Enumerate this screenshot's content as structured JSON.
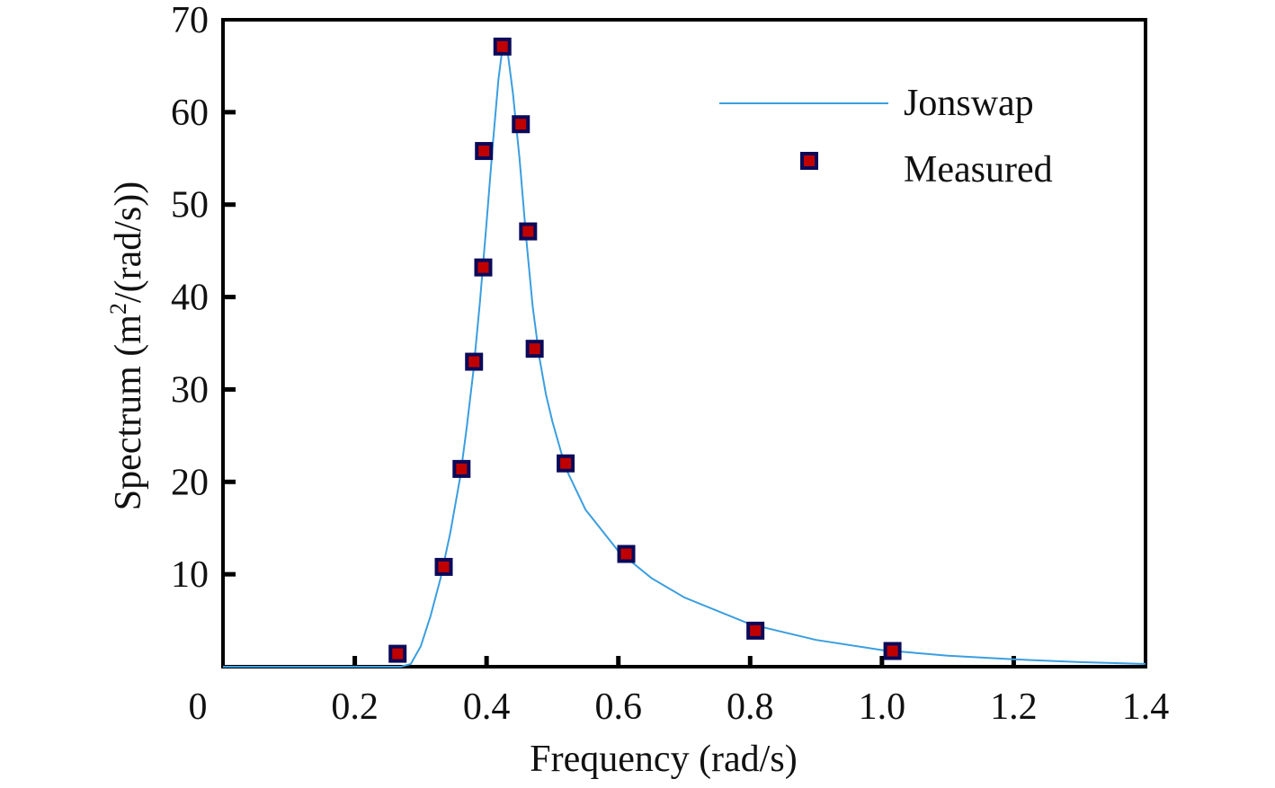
{
  "chart_data": {
    "type": "line",
    "title": "",
    "xlabel": "Frequency (rad/s)",
    "ylabel_main": "Spectrum (m",
    "ylabel_sup": "2",
    "ylabel_rest": "/(rad/s))",
    "xlim": [
      0,
      1.4
    ],
    "ylim": [
      0,
      70
    ],
    "xticks": [
      0,
      0.2,
      0.4,
      0.6,
      0.8,
      1.0,
      1.2,
      1.4
    ],
    "xtick_labels": [
      "0",
      "0.2",
      "0.4",
      "0.6",
      "0.8",
      "1.0",
      "1.2",
      "1.4"
    ],
    "yticks": [
      10,
      20,
      30,
      40,
      50,
      60,
      70
    ],
    "ytick_labels": [
      "10",
      "20",
      "30",
      "40",
      "50",
      "60",
      "70"
    ],
    "grid": false,
    "legend_position": "top-right",
    "colors": {
      "line": "#3a9ee0",
      "marker_edge": "#0a0a5a",
      "marker_fill": "#c00000"
    },
    "series": [
      {
        "name": "Jonswap",
        "kind": "line",
        "x": [
          0,
          0.27,
          0.285,
          0.3,
          0.315,
          0.33,
          0.345,
          0.36,
          0.37,
          0.38,
          0.39,
          0.4,
          0.41,
          0.418,
          0.425,
          0.432,
          0.44,
          0.45,
          0.46,
          0.47,
          0.48,
          0.49,
          0.5,
          0.52,
          0.55,
          0.6,
          0.65,
          0.7,
          0.8,
          0.9,
          1.0,
          1.1,
          1.2,
          1.3,
          1.4
        ],
        "y": [
          0,
          0,
          0.3,
          2.2,
          5.5,
          9.5,
          14.5,
          20.5,
          26,
          32,
          39.5,
          48,
          57,
          63.5,
          67.5,
          66.5,
          62,
          55,
          46.5,
          39,
          33.5,
          29.5,
          26.5,
          21.5,
          17,
          12.5,
          9.6,
          7.5,
          4.6,
          2.9,
          1.8,
          1.2,
          0.8,
          0.5,
          0.3
        ]
      },
      {
        "name": "Measured",
        "kind": "scatter",
        "x": [
          0.265,
          0.335,
          0.362,
          0.381,
          0.395,
          0.396,
          0.424,
          0.452,
          0.463,
          0.473,
          0.52,
          0.612,
          0.808,
          1.016
        ],
        "y": [
          1.4,
          10.8,
          21.4,
          33.0,
          43.2,
          55.8,
          67.1,
          58.7,
          47.1,
          34.4,
          22.0,
          12.2,
          3.9,
          1.7
        ]
      }
    ]
  }
}
